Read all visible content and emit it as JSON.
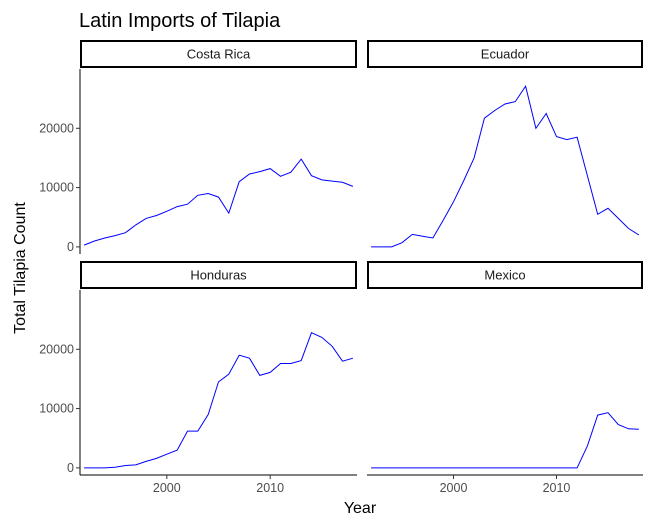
{
  "chart_data": {
    "type": "line",
    "title": "Latin Imports of Tilapia",
    "xlabel": "Year",
    "ylabel": "Total Tilapia Count",
    "xlim": [
      1991.6,
      2018.4
    ],
    "ylim": [
      -1200,
      30000
    ],
    "x_ticks": [
      2000,
      2010
    ],
    "y_ticks": [
      0,
      10000,
      20000
    ],
    "line_color": "#0000ff",
    "panels": [
      {
        "name": "Costa Rica",
        "x": [
          1992,
          1993,
          1994,
          1995,
          1996,
          1997,
          1998,
          1999,
          2000,
          2001,
          2002,
          2003,
          2004,
          2005,
          2006,
          2007,
          2008,
          2009,
          2010,
          2011,
          2012,
          2013,
          2014,
          2015,
          2016,
          2017,
          2018
        ],
        "y": [
          300,
          1000,
          1500,
          1900,
          2400,
          3700,
          4800,
          5300,
          6000,
          6800,
          7200,
          8700,
          9000,
          8400,
          5700,
          11000,
          12300,
          12700,
          13200,
          11900,
          12600,
          14800,
          12000,
          11300,
          11100,
          10900,
          10200
        ]
      },
      {
        "name": "Ecuador",
        "x": [
          1992,
          1993,
          1994,
          1995,
          1996,
          1997,
          1998,
          1999,
          2000,
          2001,
          2002,
          2003,
          2004,
          2005,
          2006,
          2007,
          2008,
          2009,
          2010,
          2011,
          2012,
          2013,
          2014,
          2015,
          2016,
          2017,
          2018
        ],
        "y": [
          0,
          0,
          0,
          700,
          2100,
          1800,
          1500,
          4500,
          7600,
          11200,
          15000,
          21700,
          23000,
          24100,
          24500,
          27100,
          20000,
          22500,
          18600,
          18100,
          18500,
          12000,
          5500,
          6500,
          4800,
          3100,
          2000
        ]
      },
      {
        "name": "Honduras",
        "x": [
          1992,
          1993,
          1994,
          1995,
          1996,
          1997,
          1998,
          1999,
          2000,
          2001,
          2002,
          2003,
          2004,
          2005,
          2006,
          2007,
          2008,
          2009,
          2010,
          2011,
          2012,
          2013,
          2014,
          2015,
          2016,
          2017,
          2018
        ],
        "y": [
          0,
          0,
          0,
          100,
          400,
          500,
          1100,
          1600,
          2300,
          3000,
          6200,
          6200,
          9000,
          14500,
          15800,
          19000,
          18500,
          15600,
          16100,
          17600,
          17600,
          18100,
          22800,
          22000,
          20500,
          18000,
          18500
        ]
      },
      {
        "name": "Mexico",
        "x": [
          1992,
          1993,
          1994,
          1995,
          1996,
          1997,
          1998,
          1999,
          2000,
          2001,
          2002,
          2003,
          2004,
          2005,
          2006,
          2007,
          2008,
          2009,
          2010,
          2011,
          2012,
          2013,
          2014,
          2015,
          2016,
          2017,
          2018
        ],
        "y": [
          0,
          0,
          0,
          0,
          0,
          0,
          0,
          0,
          0,
          0,
          0,
          0,
          0,
          0,
          0,
          0,
          0,
          0,
          0,
          0,
          0,
          3700,
          8900,
          9300,
          7300,
          6600,
          6500
        ]
      }
    ]
  }
}
